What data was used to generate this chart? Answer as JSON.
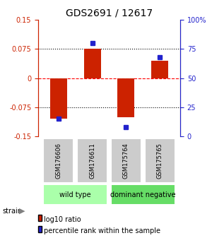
{
  "title": "GDS2691 / 12617",
  "samples": [
    "GSM176606",
    "GSM176611",
    "GSM175764",
    "GSM175765"
  ],
  "log10_ratios": [
    -0.105,
    0.075,
    -0.1,
    0.045
  ],
  "percentile_ranks": [
    15,
    80,
    8,
    68
  ],
  "ylim_left": [
    -0.15,
    0.15
  ],
  "ylim_right": [
    0,
    100
  ],
  "yticks_left": [
    -0.15,
    -0.075,
    0,
    0.075,
    0.15
  ],
  "ytick_labels_left": [
    "-0.15",
    "-0.075",
    "0",
    "0.075",
    "0.15"
  ],
  "yticks_right": [
    0,
    25,
    50,
    75,
    100
  ],
  "ytick_labels_right": [
    "0",
    "25",
    "50",
    "75",
    "100%"
  ],
  "hlines": [
    0.075,
    0.0,
    -0.075
  ],
  "hline_styles": [
    "dotted",
    "dashed",
    "dotted"
  ],
  "hline_colors": [
    "black",
    "red",
    "black"
  ],
  "bar_color": "#cc2200",
  "dot_color": "#2222cc",
  "bar_width": 0.5,
  "groups": [
    {
      "label": "wild type",
      "samples": [
        0,
        1
      ],
      "color": "#aaffaa"
    },
    {
      "label": "dominant negative",
      "samples": [
        2,
        3
      ],
      "color": "#66dd66"
    }
  ],
  "strain_label": "strain",
  "legend_bar_label": "log10 ratio",
  "legend_dot_label": "percentile rank within the sample",
  "label_box_color": "#cccccc",
  "axis_left_color": "#cc2200",
  "axis_right_color": "#2222cc"
}
